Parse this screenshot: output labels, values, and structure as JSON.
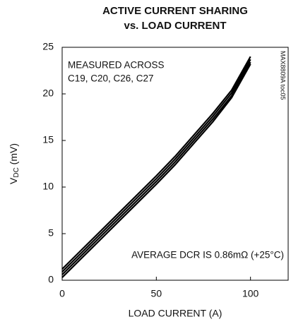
{
  "chart_data": {
    "type": "line",
    "title": [
      "ACTIVE CURRENT SHARING",
      "vs. LOAD CURRENT"
    ],
    "xlabel": "LOAD CURRENT (A)",
    "ylabel": {
      "text": "V",
      "subscript": "DC",
      "suffix": " (mV)"
    },
    "annotations": [
      "MEASURED ACROSS",
      "C19, C20, C26, C27",
      "AVERAGE DCR IS 0.86mΩ  (+25°C)",
      "MAX8809A toc05"
    ],
    "x": [
      0,
      10,
      20,
      30,
      40,
      50,
      60,
      70,
      80,
      90,
      100
    ],
    "series": [
      {
        "color": "#000000",
        "values": [
          1.2,
          3.2,
          5.2,
          7.2,
          9.2,
          11.2,
          13.3,
          15.6,
          17.9,
          20.4,
          24.0
        ]
      },
      {
        "color": "#000000",
        "values": [
          0.9,
          2.9,
          4.9,
          6.9,
          8.9,
          10.9,
          13.0,
          15.3,
          17.6,
          20.1,
          23.7
        ]
      },
      {
        "color": "#000000",
        "values": [
          0.6,
          2.6,
          4.6,
          6.6,
          8.6,
          10.6,
          12.7,
          15.0,
          17.3,
          19.8,
          23.4
        ]
      },
      {
        "color": "#000000",
        "values": [
          0.3,
          2.3,
          4.3,
          6.3,
          8.3,
          10.3,
          12.4,
          14.7,
          17.0,
          19.6,
          23.2
        ]
      }
    ],
    "xlim": [
      0,
      120
    ],
    "xticks": [
      0,
      50,
      100
    ],
    "ylim": [
      0,
      25
    ],
    "yticks": [
      0,
      5,
      10,
      15,
      20,
      25
    ],
    "grid": false
  }
}
